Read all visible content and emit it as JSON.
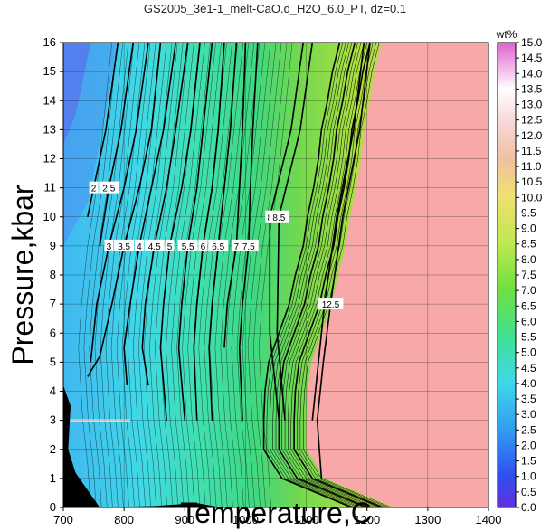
{
  "chart_data": {
    "type": "heatmap",
    "title": "GS2005_3e1-1_melt-CaO.d_H2O_6.0_PT, dz=0.1",
    "xlabel": "Temperature,C",
    "ylabel": "Pressure,kbar",
    "xlim": [
      700,
      1400
    ],
    "ylim": [
      0,
      16
    ],
    "xticks": [
      700,
      800,
      900,
      1000,
      1100,
      1200,
      1300,
      1400
    ],
    "yticks": [
      0,
      1,
      2,
      3,
      4,
      5,
      6,
      7,
      8,
      9,
      10,
      11,
      12,
      13,
      14,
      15,
      16
    ],
    "grid": true,
    "colorbar": {
      "label": "wt%",
      "range": [
        0,
        15
      ],
      "ticks": [
        "0.0",
        "0.5",
        "1.0",
        "1.5",
        "2.0",
        "2.5",
        "3.0",
        "3.5",
        "4.0",
        "4.5",
        "5.0",
        "5.5",
        "6.0",
        "6.5",
        "7.0",
        "7.5",
        "8.0",
        "8.5",
        "9.0",
        "9.5",
        "10.0",
        "10.5",
        "11.0",
        "11.5",
        "12.0",
        "12.5",
        "13.0",
        "13.5",
        "14.0",
        "14.5",
        "15.0"
      ]
    },
    "saturated_region_color": "#f8a8a8",
    "boundary": {
      "description_points_T_at_P": [
        [
          0,
          1245
        ],
        [
          1,
          1130
        ],
        [
          2,
          1100
        ],
        [
          3,
          1100
        ],
        [
          4,
          1102
        ],
        [
          5,
          1108
        ],
        [
          6,
          1125
        ],
        [
          7,
          1142
        ],
        [
          8,
          1152
        ],
        [
          9,
          1165
        ],
        [
          10,
          1172
        ],
        [
          11,
          1182
        ],
        [
          12,
          1190
        ],
        [
          13,
          1195
        ],
        [
          14,
          1205
        ],
        [
          15,
          1213
        ],
        [
          16,
          1225
        ]
      ]
    },
    "contours": [
      {
        "level": "2",
        "points": [
          [
            790,
            16
          ],
          [
            770,
            13
          ],
          [
            750,
            11
          ],
          [
            740,
            10
          ]
        ]
      },
      {
        "level": "2.5",
        "points": [
          [
            815,
            16
          ],
          [
            795,
            13
          ],
          [
            775,
            11
          ],
          [
            760,
            9
          ]
        ]
      },
      {
        "level": "3",
        "points": [
          [
            840,
            16
          ],
          [
            820,
            13
          ],
          [
            800,
            11
          ],
          [
            775,
            9
          ],
          [
            755,
            7
          ],
          [
            745,
            5
          ]
        ]
      },
      {
        "level": "3.5",
        "points": [
          [
            860,
            16
          ],
          [
            845,
            13
          ],
          [
            825,
            11
          ],
          [
            800,
            9
          ],
          [
            780,
            7
          ],
          [
            760,
            5.2
          ],
          [
            740,
            4.5
          ]
        ]
      },
      {
        "level": "4",
        "points": [
          [
            885,
            16
          ],
          [
            865,
            13
          ],
          [
            845,
            11
          ],
          [
            825,
            9
          ],
          [
            810,
            7
          ],
          [
            800,
            5.5
          ],
          [
            805,
            4.2
          ]
        ]
      },
      {
        "level": "4.5",
        "points": [
          [
            905,
            16
          ],
          [
            885,
            13
          ],
          [
            870,
            11
          ],
          [
            850,
            9
          ],
          [
            835,
            7
          ],
          [
            830,
            5.5
          ],
          [
            840,
            4.2
          ]
        ]
      },
      {
        "level": "5",
        "points": [
          [
            925,
            16
          ],
          [
            910,
            13
          ],
          [
            895,
            11
          ],
          [
            875,
            9
          ],
          [
            865,
            7
          ],
          [
            860,
            5.5
          ],
          [
            870,
            3
          ]
        ]
      },
      {
        "level": "5.5",
        "points": [
          [
            945,
            16
          ],
          [
            930,
            13
          ],
          [
            920,
            11
          ],
          [
            905,
            9
          ],
          [
            895,
            7
          ],
          [
            890,
            5.5
          ],
          [
            900,
            3
          ]
        ]
      },
      {
        "level": "6",
        "points": [
          [
            965,
            16
          ],
          [
            955,
            13
          ],
          [
            945,
            11
          ],
          [
            930,
            9
          ],
          [
            920,
            7
          ],
          [
            915,
            5.5
          ],
          [
            920,
            3
          ]
        ]
      },
      {
        "level": "6.5",
        "points": [
          [
            985,
            16
          ],
          [
            975,
            13
          ],
          [
            965,
            11
          ],
          [
            955,
            9
          ],
          [
            945,
            7
          ],
          [
            940,
            5.5
          ],
          [
            945,
            3
          ]
        ]
      },
      {
        "level": "7",
        "points": [
          [
            1000,
            16
          ],
          [
            995,
            13
          ],
          [
            990,
            11
          ],
          [
            985,
            9
          ],
          [
            970,
            7
          ],
          [
            965,
            5.5
          ]
        ]
      },
      {
        "level": "7.5",
        "points": [
          [
            1020,
            16
          ],
          [
            1012,
            13
          ],
          [
            1008,
            11
          ],
          [
            1005,
            9
          ],
          [
            995,
            7
          ],
          [
            990,
            5.5
          ],
          [
            995,
            3
          ]
        ]
      },
      {
        "level": "8",
        "points": [
          [
            1095,
            16
          ],
          [
            1075,
            13
          ],
          [
            1040,
            10
          ],
          [
            1040,
            6
          ],
          [
            1055,
            3
          ]
        ]
      },
      {
        "level": "8.5",
        "points": [
          [
            1110,
            16
          ],
          [
            1090,
            13
          ],
          [
            1055,
            10
          ],
          [
            1052,
            6
          ],
          [
            1065,
            3
          ]
        ]
      },
      {
        "level": "12",
        "points": [
          [
            1195,
            16
          ],
          [
            1178,
            13
          ],
          [
            1150,
            10
          ],
          [
            1130,
            7
          ],
          [
            1120,
            5
          ],
          [
            1110,
            3
          ]
        ]
      },
      {
        "level": "12.5",
        "points": [
          [
            1205,
            16
          ],
          [
            1188,
            13
          ],
          [
            1160,
            10
          ],
          [
            1140,
            7
          ],
          [
            1128,
            5
          ],
          [
            1118,
            3
          ],
          [
            1125,
            1
          ]
        ]
      }
    ]
  },
  "colors": {
    "colorbar_stops": [
      "#6030e0",
      "#3060f0",
      "#30a0f0",
      "#40e0e0",
      "#40e080",
      "#80e040",
      "#e0f060",
      "#f0c0a0",
      "#f8d0d0",
      "#ffffff",
      "#e060d0"
    ]
  }
}
